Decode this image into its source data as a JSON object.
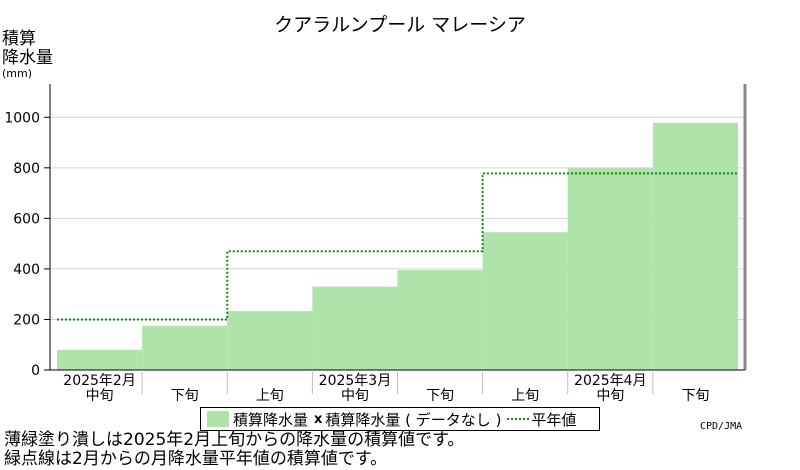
{
  "title": "クアラルンプール マレーシア",
  "y_label": {
    "line1": "積算",
    "line2": "降水量",
    "unit": "(mm)"
  },
  "legend": {
    "bar_label": "積算降水量",
    "missing_label": "積算降水量 ( データなし )",
    "normal_label": "平年値"
  },
  "credit": "CPD/JMA",
  "notes": [
    "薄緑塗り潰しは2025年2月上旬からの降水量の積算値です。",
    "緑点線は2月からの月降水量平年値の積算値です。"
  ],
  "colors": {
    "bar": "#aee3aa",
    "normal_line": "#118a11",
    "grid": "#d4d4d4"
  },
  "chart_data": {
    "type": "bar",
    "categories": [
      "中旬",
      "下旬",
      "上旬",
      "中旬",
      "下旬",
      "上旬",
      "中旬",
      "下旬"
    ],
    "month_labels": [
      {
        "label": "2025年2月",
        "under": 0
      },
      {
        "label": "2025年3月",
        "under": 3
      },
      {
        "label": "2025年4月",
        "under": 6
      }
    ],
    "series": [
      {
        "name": "積算降水量",
        "values": [
          80,
          175,
          233,
          330,
          395,
          545,
          800,
          978
        ]
      },
      {
        "name": "平年値",
        "type": "step",
        "values": [
          200,
          200,
          470,
          470,
          470,
          778,
          778,
          778
        ]
      }
    ],
    "ylim": [
      0,
      1100
    ],
    "yticks": [
      0,
      200,
      400,
      600,
      800,
      1000
    ],
    "grid": true
  }
}
